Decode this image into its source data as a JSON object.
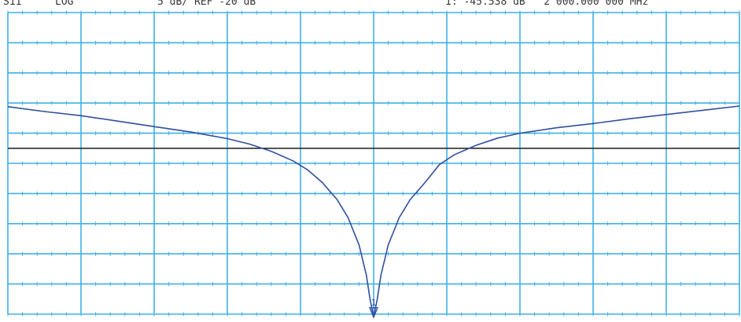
{
  "header": {
    "param": "S11",
    "format": "LOG",
    "scale": "5 dB/ REF -20 dB",
    "marker_readout": "1: -45.538 dB   2 000.000 000 MHz"
  },
  "colors": {
    "grid": "#3fb0e8",
    "trace": "#2f4f9e",
    "reference_line": "#2b2b2b",
    "background": "#ffffff"
  },
  "chart_data": {
    "type": "line",
    "title": "",
    "xlabel": "",
    "ylabel": "",
    "x_divisions": 10,
    "y_divisions": 10,
    "y_per_division_db": 5,
    "reference_db": -20,
    "reference_division_from_top": 5,
    "ylim": [
      -45,
      5
    ],
    "xlim": [
      0,
      10
    ],
    "grid": true,
    "marker": {
      "label": "1",
      "x": 5.0,
      "y": -45.5
    },
    "series": [
      {
        "x": [
          0,
          0.5,
          1,
          1.5,
          2,
          2.5,
          3,
          3.3,
          3.6,
          3.9,
          4.1,
          4.3,
          4.5,
          4.65,
          4.8,
          4.9,
          4.95,
          5.0,
          5.05,
          5.1,
          5.2,
          5.35,
          5.5,
          5.7,
          5.9,
          6.1,
          6.4,
          6.7,
          7,
          7.5,
          8,
          8.5,
          9,
          9.5,
          10
        ],
        "values": [
          -10.6,
          -11.4,
          -12.1,
          -13.0,
          -13.9,
          -14.8,
          -15.9,
          -16.8,
          -18.0,
          -19.6,
          -21.1,
          -23.2,
          -26.0,
          -29.0,
          -33.5,
          -38.5,
          -42.5,
          -45.5,
          -42.5,
          -38.5,
          -33.5,
          -29.0,
          -26.0,
          -23.2,
          -20.2,
          -18.6,
          -17.0,
          -15.8,
          -15.0,
          -14.1,
          -13.4,
          -12.6,
          -11.9,
          -11.2,
          -10.5
        ]
      }
    ]
  }
}
